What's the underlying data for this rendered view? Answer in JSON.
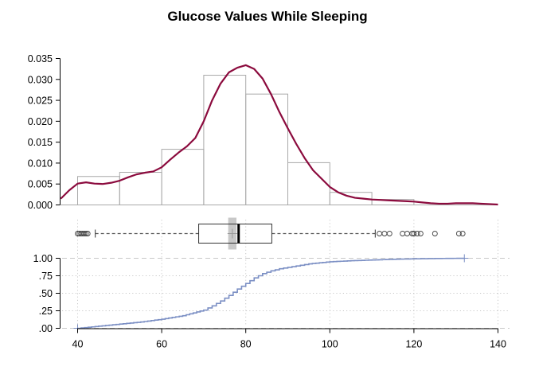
{
  "chart_data": {
    "type": "histogram+density+boxplot+ecdf",
    "title": "Glucose Values While Sleeping",
    "xlim": [
      40,
      140
    ],
    "x_ticks": [
      "40",
      "60",
      "80",
      "100",
      "120",
      "140"
    ],
    "colors": {
      "density": "#8b0a3d",
      "hist_border": "#a9a9a9",
      "ecdf": "#7b8fc4",
      "box_median": "#000000",
      "box_mean_band": "#c8c8c8",
      "guide": "#c8c8c8"
    },
    "histogram": {
      "ylim": [
        0,
        0.035
      ],
      "y_ticks": [
        "0.000",
        "0.005",
        "0.010",
        "0.015",
        "0.020",
        "0.025",
        "0.030",
        "0.035"
      ],
      "bins": [
        {
          "x0": 40,
          "x1": 50,
          "density": 0.0068
        },
        {
          "x0": 50,
          "x1": 60,
          "density": 0.0078
        },
        {
          "x0": 60,
          "x1": 70,
          "density": 0.0133
        },
        {
          "x0": 70,
          "x1": 80,
          "density": 0.031
        },
        {
          "x0": 80,
          "x1": 90,
          "density": 0.0265
        },
        {
          "x0": 90,
          "x1": 100,
          "density": 0.0101
        },
        {
          "x0": 100,
          "x1": 110,
          "density": 0.003
        },
        {
          "x0": 110,
          "x1": 120,
          "density": 0.0013
        }
      ]
    },
    "density_curve": {
      "x": [
        36,
        38,
        40,
        42,
        44,
        46,
        48,
        50,
        52,
        54,
        56,
        58,
        60,
        62,
        64,
        66,
        68,
        70,
        72,
        74,
        76,
        78,
        80,
        82,
        84,
        86,
        88,
        90,
        92,
        94,
        96,
        98,
        100,
        102,
        104,
        106,
        108,
        110,
        112,
        114,
        116,
        118,
        120,
        122,
        124,
        126,
        128,
        130,
        132,
        134,
        136,
        138,
        140
      ],
      "y": [
        0.0015,
        0.0035,
        0.0051,
        0.0054,
        0.0051,
        0.005,
        0.0053,
        0.0058,
        0.0066,
        0.0073,
        0.0077,
        0.008,
        0.009,
        0.0108,
        0.0125,
        0.014,
        0.016,
        0.02,
        0.025,
        0.029,
        0.0317,
        0.0328,
        0.0334,
        0.0325,
        0.0302,
        0.0265,
        0.0222,
        0.0183,
        0.0146,
        0.0112,
        0.0083,
        0.0063,
        0.0043,
        0.003,
        0.0022,
        0.0017,
        0.0015,
        0.0013,
        0.0012,
        0.0011,
        0.001,
        0.0009,
        0.0008,
        0.0006,
        0.0004,
        0.0003,
        0.0003,
        0.0004,
        0.0004,
        0.0004,
        0.0003,
        0.0002,
        0.0001
      ]
    },
    "boxplot": {
      "whisker_low": 44.2,
      "q1": 68.8,
      "median": 78.3,
      "q3": 86.2,
      "whisker_high": 110.8,
      "mean": 76.8,
      "mean_ci": [
        76.2,
        77.4
      ],
      "outliers": [
        40.0,
        40.4,
        40.8,
        41.2,
        41.6,
        42.0,
        42.4,
        111.8,
        113.0,
        114.2,
        117.3,
        118.4,
        119.6,
        120.0,
        120.8,
        121.6,
        125.0,
        130.7,
        131.6
      ]
    },
    "ecdf": {
      "y_ticks": [
        ".00",
        ".25",
        ".50",
        ".75",
        "1.00"
      ],
      "ylim": [
        0,
        1
      ],
      "x": [
        40,
        45,
        50,
        55,
        60,
        65,
        70,
        72,
        74,
        76,
        78,
        80,
        82,
        84,
        86,
        88,
        90,
        92,
        95,
        100,
        105,
        110,
        115,
        120,
        125,
        132
      ],
      "y": [
        0.0,
        0.03,
        0.06,
        0.09,
        0.13,
        0.18,
        0.26,
        0.32,
        0.39,
        0.47,
        0.56,
        0.64,
        0.72,
        0.78,
        0.82,
        0.85,
        0.87,
        0.89,
        0.92,
        0.95,
        0.965,
        0.975,
        0.985,
        0.992,
        0.996,
        1.0
      ]
    }
  }
}
